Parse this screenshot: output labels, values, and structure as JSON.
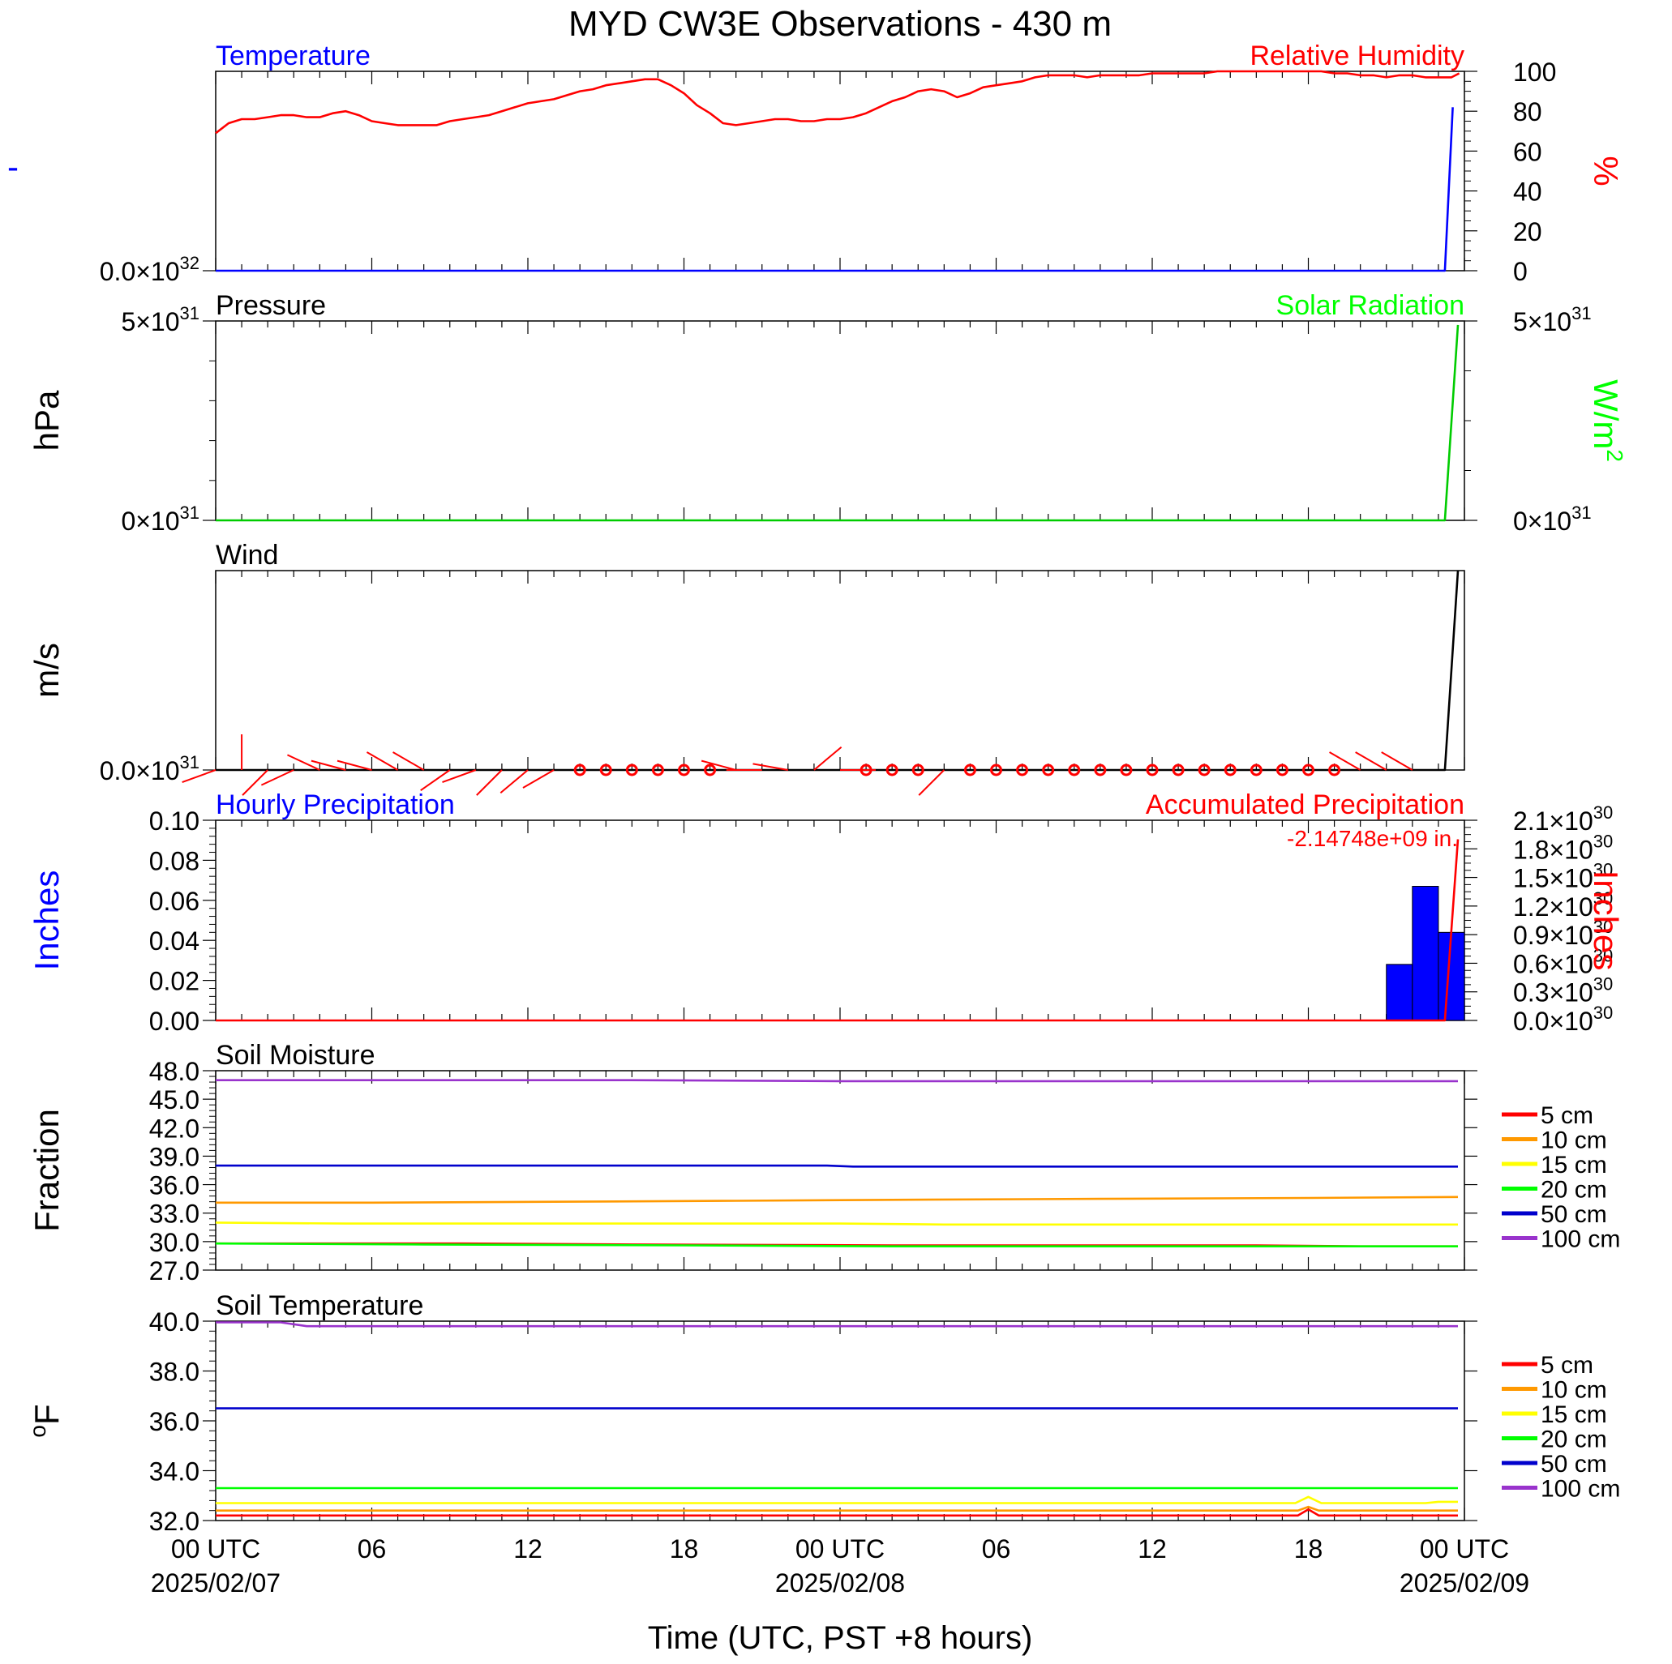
{
  "title": "MYD CW3E Observations - 430 m",
  "x_axis": {
    "label": "Time (UTC, PST +8 hours)",
    "start": "2025-02-07T00:00Z",
    "end": "2025-02-09T00:00Z",
    "major_ticks": [
      {
        "at": "2025-02-07T00:00Z",
        "line1": "00 UTC",
        "line2": "2025/02/07"
      },
      {
        "at": "2025-02-07T06:00Z",
        "line1": "06",
        "line2": ""
      },
      {
        "at": "2025-02-07T12:00Z",
        "line1": "12",
        "line2": ""
      },
      {
        "at": "2025-02-07T18:00Z",
        "line1": "18",
        "line2": ""
      },
      {
        "at": "2025-02-08T00:00Z",
        "line1": "00 UTC",
        "line2": "2025/02/08"
      },
      {
        "at": "2025-02-08T06:00Z",
        "line1": "06",
        "line2": ""
      },
      {
        "at": "2025-02-08T12:00Z",
        "line1": "12",
        "line2": ""
      },
      {
        "at": "2025-02-08T18:00Z",
        "line1": "18",
        "line2": ""
      },
      {
        "at": "2025-02-09T00:00Z",
        "line1": "00 UTC",
        "line2": "2025/02/09"
      }
    ]
  },
  "legend": {
    "entries": [
      {
        "label": "5 cm",
        "color": "#ff0000"
      },
      {
        "label": "10 cm",
        "color": "#ff9900"
      },
      {
        "label": "15 cm",
        "color": "#ffff00"
      },
      {
        "label": "20 cm",
        "color": "#00ff00"
      },
      {
        "label": "50 cm",
        "color": "#0000cc"
      },
      {
        "label": "100 cm",
        "color": "#9933cc"
      }
    ]
  },
  "chart_data": [
    {
      "type": "line",
      "panel": "temperature_rh",
      "title_left": "Temperature",
      "title_left_color": "#0000ff",
      "title_right": "Relative Humidity",
      "title_right_color": "#ff0000",
      "left_axis": {
        "label": "-",
        "label_color": "#0000ff",
        "ticks": [
          {
            "v": 0,
            "label": "0.0",
            "exp": "32"
          }
        ]
      },
      "right_axis": {
        "label": "%",
        "label_color": "#ff0000",
        "ylim": [
          0,
          100
        ],
        "ticks": [
          {
            "v": 0,
            "label": "0"
          },
          {
            "v": 20,
            "label": "20"
          },
          {
            "v": 40,
            "label": "40"
          },
          {
            "v": 60,
            "label": "60"
          },
          {
            "v": 80,
            "label": "80"
          },
          {
            "v": 100,
            "label": "100"
          }
        ]
      },
      "series": [
        {
          "name": "Relative Humidity",
          "color": "#ff0000",
          "axis": "right",
          "x": [
            0,
            0.5,
            1,
            1.5,
            2,
            2.5,
            3,
            3.5,
            4,
            4.5,
            5,
            5.5,
            6,
            6.5,
            7,
            7.5,
            8,
            8.5,
            9,
            9.5,
            10,
            10.5,
            11,
            11.5,
            12,
            12.5,
            13,
            13.5,
            14,
            14.5,
            15,
            15.5,
            16,
            16.5,
            17,
            17.5,
            18,
            18.5,
            19,
            19.5,
            20,
            20.5,
            21,
            21.5,
            22,
            22.5,
            23,
            23.5,
            24,
            24.5,
            25,
            25.5,
            26,
            26.5,
            27,
            27.5,
            28,
            28.5,
            29,
            29.5,
            30,
            30.5,
            31,
            31.5,
            32,
            32.5,
            33,
            33.5,
            34,
            34.5,
            35,
            35.5,
            36,
            36.5,
            37,
            37.5,
            38,
            38.5,
            39,
            39.5,
            40,
            40.5,
            41,
            41.5,
            42,
            42.5,
            43,
            43.5,
            44,
            44.5,
            45,
            45.5,
            46,
            46.5,
            47,
            47.5,
            47.8
          ],
          "y": [
            69,
            74,
            76,
            76,
            77,
            78,
            78,
            77,
            77,
            79,
            80,
            78,
            75,
            74,
            73,
            73,
            73,
            73,
            75,
            76,
            77,
            78,
            80,
            82,
            84,
            85,
            86,
            88,
            90,
            91,
            93,
            94,
            95,
            96,
            96,
            93,
            89,
            83,
            79,
            74,
            73,
            74,
            75,
            76,
            76,
            75,
            75,
            76,
            76,
            77,
            79,
            82,
            85,
            87,
            90,
            91,
            90,
            87,
            89,
            92,
            93,
            94,
            95,
            97,
            98,
            98,
            98,
            97,
            98,
            98,
            98,
            98,
            99,
            99,
            99,
            99,
            99,
            100,
            100,
            100,
            100,
            100,
            100,
            100,
            100,
            100,
            99,
            99,
            98,
            98,
            97,
            98,
            98,
            97,
            97,
            97,
            99
          ]
        },
        {
          "name": "Temperature",
          "color": "#0000ff",
          "axis": "right",
          "x": [
            0,
            47.25,
            47.55
          ],
          "y": [
            0,
            0,
            82
          ]
        }
      ]
    },
    {
      "type": "line",
      "panel": "pressure_solar",
      "title_left": "Pressure",
      "title_left_color": "#000000",
      "title_right": "Solar Radiation",
      "title_right_color": "#00ff00",
      "left_axis": {
        "label": "hPa",
        "label_color": "#000000",
        "ylim": [
          0,
          5e+31
        ],
        "ticks": [
          {
            "v": 0,
            "label": "0",
            "exp": "31"
          },
          {
            "v": 5e+31,
            "label": "5",
            "exp": "31"
          }
        ]
      },
      "right_axis": {
        "label": "W/m",
        "label_sup": "2",
        "label_color": "#00ff00",
        "ylim": [
          0,
          5e+31
        ],
        "ticks": [
          {
            "v": 0,
            "label": "0",
            "exp": "31"
          },
          {
            "v": 5e+31,
            "label": "5",
            "exp": "31"
          }
        ]
      },
      "series": [
        {
          "name": "Solar Radiation",
          "color": "#00cc00",
          "axis": "right",
          "x": [
            0,
            47.25,
            47.75
          ],
          "y": [
            0,
            0,
            4.9e+31
          ]
        }
      ]
    },
    {
      "type": "line",
      "panel": "wind",
      "title_left": "Wind",
      "title_left_color": "#000000",
      "left_axis": {
        "label": "m/s",
        "label_color": "#000000",
        "ticks": [
          {
            "v": 0,
            "label": "0.0",
            "exp": "31"
          }
        ]
      },
      "series": [
        {
          "name": "Wind",
          "color": "#000000",
          "axis": "left",
          "x": [
            0,
            47.25,
            47.75
          ],
          "y": [
            0,
            0,
            1
          ]
        }
      ],
      "barbs": [
        {
          "t": 0,
          "dir": 250
        },
        {
          "t": 1,
          "dir": 0
        },
        {
          "t": 2,
          "dir": 225
        },
        {
          "t": 3,
          "dir": 245
        },
        {
          "t": 4,
          "dir": 295
        },
        {
          "t": 5,
          "dir": 285
        },
        {
          "t": 6,
          "dir": 285
        },
        {
          "t": 7,
          "dir": 300
        },
        {
          "t": 8,
          "dir": 300
        },
        {
          "t": 9,
          "dir": 235
        },
        {
          "t": 10,
          "dir": 250
        },
        {
          "t": 11,
          "dir": 225
        },
        {
          "t": 12,
          "dir": 230
        },
        {
          "t": 13,
          "dir": 240
        },
        {
          "t": 14,
          "calm": true
        },
        {
          "t": 15,
          "calm": true
        },
        {
          "t": 16,
          "calm": true
        },
        {
          "t": 17,
          "calm": true
        },
        {
          "t": 18,
          "calm": true
        },
        {
          "t": 19,
          "calm": true
        },
        {
          "t": 20,
          "dir": 285
        },
        {
          "t": 21,
          "dir": 270
        },
        {
          "t": 22,
          "dir": 280
        },
        {
          "t": 23,
          "dir": 50
        },
        {
          "t": 24,
          "dir": 90
        },
        {
          "t": 25,
          "calm": true
        },
        {
          "t": 26,
          "calm": true
        },
        {
          "t": 27,
          "calm": true
        },
        {
          "t": 28,
          "dir": 225
        },
        {
          "t": 29,
          "calm": true
        },
        {
          "t": 30,
          "calm": true
        },
        {
          "t": 31,
          "calm": true
        },
        {
          "t": 32,
          "calm": true
        },
        {
          "t": 33,
          "calm": true
        },
        {
          "t": 34,
          "calm": true
        },
        {
          "t": 35,
          "calm": true
        },
        {
          "t": 36,
          "calm": true
        },
        {
          "t": 37,
          "calm": true
        },
        {
          "t": 38,
          "calm": true
        },
        {
          "t": 39,
          "calm": true
        },
        {
          "t": 40,
          "calm": true
        },
        {
          "t": 41,
          "calm": true
        },
        {
          "t": 42,
          "calm": true
        },
        {
          "t": 43,
          "calm": true
        },
        {
          "t": 44,
          "dir": 300
        },
        {
          "t": 45,
          "dir": 300
        },
        {
          "t": 46,
          "dir": 300
        }
      ]
    },
    {
      "type": "bar",
      "panel": "precipitation",
      "title_left": "Hourly Precipitation",
      "title_left_color": "#0000ff",
      "title_right": "Accumulated Precipitation",
      "title_right_color": "#ff0000",
      "annotation": "-2.14748e+09 in.",
      "left_axis": {
        "label": "Inches",
        "label_color": "#0000ff",
        "ylim": [
          0,
          0.1
        ],
        "ticks": [
          {
            "v": 0,
            "label": "0.00"
          },
          {
            "v": 0.02,
            "label": "0.02"
          },
          {
            "v": 0.04,
            "label": "0.04"
          },
          {
            "v": 0.06,
            "label": "0.06"
          },
          {
            "v": 0.08,
            "label": "0.08"
          },
          {
            "v": 0.1,
            "label": "0.10"
          }
        ]
      },
      "right_axis": {
        "label": "Inches",
        "label_color": "#ff0000",
        "ylim": [
          0,
          2.1e+30
        ],
        "ticks": [
          {
            "v": 0,
            "label": "0.0",
            "exp": "30"
          },
          {
            "v": 3e+29,
            "label": "0.3",
            "exp": "30"
          },
          {
            "v": 6e+29,
            "label": "0.6",
            "exp": "30"
          },
          {
            "v": 9e+29,
            "label": "0.9",
            "exp": "30"
          },
          {
            "v": 1.2e+30,
            "label": "1.2",
            "exp": "30"
          },
          {
            "v": 1.5e+30,
            "label": "1.5",
            "exp": "30"
          },
          {
            "v": 1.8e+30,
            "label": "1.8",
            "exp": "30"
          },
          {
            "v": 2.1e+30,
            "label": "2.1",
            "exp": "30"
          }
        ]
      },
      "bars": [
        {
          "start": 45,
          "end": 46,
          "value": 0.028
        },
        {
          "start": 46,
          "end": 47,
          "value": 0.067
        },
        {
          "start": 47,
          "end": 48,
          "value": 0.044
        }
      ],
      "series": [
        {
          "name": "Accumulated Precipitation",
          "color": "#ff0000",
          "axis": "right",
          "x": [
            0,
            47.25,
            47.75
          ],
          "y": [
            0,
            0,
            1.9e+30
          ]
        }
      ]
    },
    {
      "type": "line",
      "panel": "soil_moisture",
      "title_left": "Soil Moisture",
      "title_left_color": "#000000",
      "left_axis": {
        "label": "Fraction",
        "label_color": "#000000",
        "ylim": [
          27,
          48
        ],
        "ticks": [
          {
            "v": 27,
            "label": "27.0"
          },
          {
            "v": 30,
            "label": "30.0"
          },
          {
            "v": 33,
            "label": "33.0"
          },
          {
            "v": 36,
            "label": "36.0"
          },
          {
            "v": 39,
            "label": "39.0"
          },
          {
            "v": 42,
            "label": "42.0"
          },
          {
            "v": 45,
            "label": "45.0"
          },
          {
            "v": 48,
            "label": "48.0"
          }
        ]
      },
      "series": [
        {
          "name": "100 cm",
          "color": "#9933cc",
          "x": [
            0,
            8,
            16,
            24,
            32,
            40,
            47.75
          ],
          "y": [
            47.0,
            47.0,
            47.0,
            46.9,
            46.9,
            46.9,
            46.9
          ]
        },
        {
          "name": "50 cm",
          "color": "#0000cc",
          "x": [
            0,
            23.5,
            24.5,
            47.75
          ],
          "y": [
            38.0,
            38.0,
            37.9,
            37.9
          ]
        },
        {
          "name": "10 cm",
          "color": "#ff9900",
          "x": [
            0,
            6,
            13,
            20,
            26,
            34,
            42,
            47.75
          ],
          "y": [
            34.1,
            34.1,
            34.2,
            34.3,
            34.4,
            34.5,
            34.6,
            34.7
          ]
        },
        {
          "name": "15 cm",
          "color": "#ffff00",
          "x": [
            0,
            5,
            24,
            28,
            47.75
          ],
          "y": [
            32.0,
            31.9,
            31.9,
            31.8,
            31.8
          ]
        },
        {
          "name": "5 cm",
          "color": "#ff0000",
          "x": [
            0,
            9.5,
            16,
            26,
            40,
            44,
            47.75
          ],
          "y": [
            29.8,
            29.8,
            29.7,
            29.6,
            29.6,
            29.5,
            29.5
          ]
        },
        {
          "name": "20 cm",
          "color": "#00ff00",
          "x": [
            0,
            8,
            18,
            26,
            40,
            47.75
          ],
          "y": [
            29.8,
            29.7,
            29.6,
            29.5,
            29.5,
            29.5
          ]
        }
      ]
    },
    {
      "type": "line",
      "panel": "soil_temperature",
      "title_left": "Soil Temperature",
      "title_left_color": "#000000",
      "left_axis": {
        "label": "F",
        "label_sup_before": "o",
        "label_color": "#000000",
        "ylim": [
          32,
          40
        ],
        "ticks": [
          {
            "v": 32,
            "label": "32.0"
          },
          {
            "v": 34,
            "label": "34.0"
          },
          {
            "v": 36,
            "label": "36.0"
          },
          {
            "v": 38,
            "label": "38.0"
          },
          {
            "v": 40,
            "label": "40.0"
          }
        ]
      },
      "series": [
        {
          "name": "100 cm",
          "color": "#9933cc",
          "x": [
            0,
            2.5,
            3.5,
            47.75
          ],
          "y": [
            39.95,
            39.95,
            39.8,
            39.8
          ]
        },
        {
          "name": "50 cm",
          "color": "#0000cc",
          "x": [
            0,
            47.75
          ],
          "y": [
            36.5,
            36.5
          ]
        },
        {
          "name": "20 cm",
          "color": "#00ff00",
          "x": [
            0,
            46.5,
            47.75
          ],
          "y": [
            33.3,
            33.3,
            33.3
          ]
        },
        {
          "name": "15 cm",
          "color": "#ffff00",
          "x": [
            0,
            41.5,
            42,
            42.5,
            46.5,
            47,
            47.75
          ],
          "y": [
            32.7,
            32.7,
            32.95,
            32.7,
            32.7,
            32.75,
            32.75
          ]
        },
        {
          "name": "10 cm",
          "color": "#ff9900",
          "x": [
            0,
            41.6,
            42,
            42.4,
            47.75
          ],
          "y": [
            32.4,
            32.4,
            32.55,
            32.4,
            32.4
          ]
        },
        {
          "name": "5 cm",
          "color": "#ff0000",
          "x": [
            0,
            41.6,
            42,
            42.4,
            47.75
          ],
          "y": [
            32.2,
            32.2,
            32.45,
            32.2,
            32.2
          ]
        }
      ]
    }
  ]
}
